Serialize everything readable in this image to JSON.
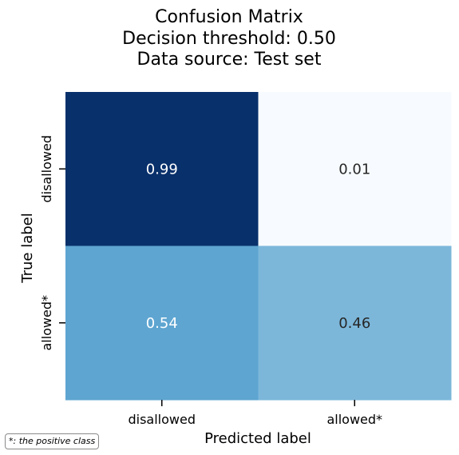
{
  "chart_data": {
    "type": "heatmap",
    "title_lines": [
      "Confusion Matrix",
      "Decision threshold: 0.50",
      "Data source: Test set"
    ],
    "xlabel": "Predicted label",
    "ylabel": "True label",
    "x_categories": [
      "disallowed",
      "allowed*"
    ],
    "y_categories": [
      "disallowed",
      "allowed*"
    ],
    "values": [
      [
        0.99,
        0.01
      ],
      [
        0.54,
        0.46
      ]
    ],
    "value_format": "0.00",
    "colormap": "Blues",
    "colorbar": false,
    "grid": false
  },
  "footnote": "*: the positive class"
}
